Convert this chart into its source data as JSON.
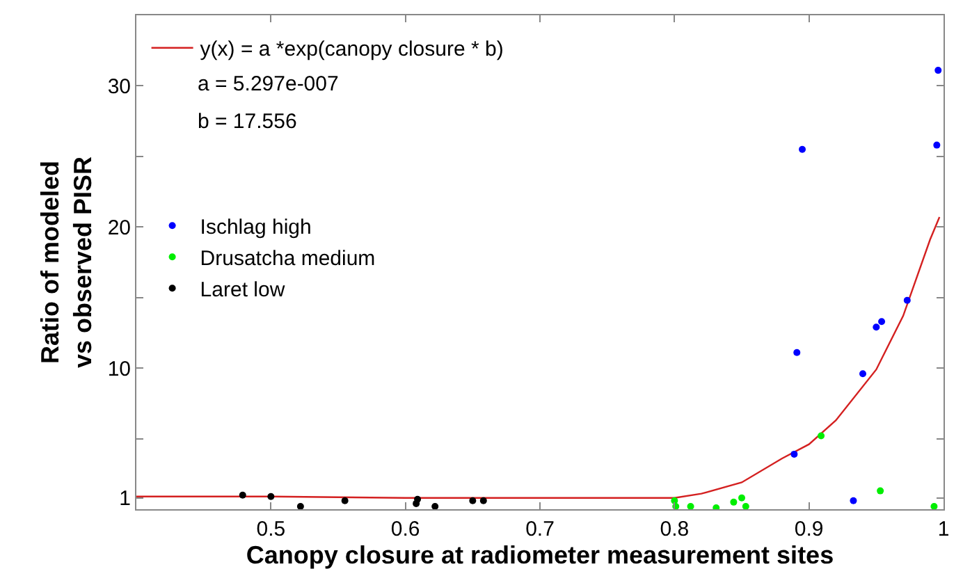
{
  "chart_data": {
    "type": "scatter",
    "xlabel": "Canopy closure at radiometer measurement sites",
    "ylabel": "Ratio of modeled\nvs observed PISR",
    "xlim": [
      0.4,
      1.0
    ],
    "ylim": [
      0,
      35
    ],
    "xticks": [
      0.5,
      0.6,
      0.7,
      0.8,
      0.9,
      1
    ],
    "yticks": [
      {
        "value": 0.8,
        "label": "1"
      },
      {
        "value": 5,
        "label": null
      },
      10,
      {
        "value": 15,
        "label": null
      },
      20,
      {
        "value": 25,
        "label": null
      },
      30
    ],
    "legend": "top left",
    "marker": "circle",
    "annotations": [
      "a = 5.297e-007",
      "b = 17.556"
    ],
    "series": [
      {
        "name": "y(x) = a *exp(canopy closure * b)",
        "type": "line",
        "marker": "none",
        "color": "#d42020",
        "line_style": "solid",
        "x": [
          0.4,
          0.5,
          0.6,
          0.7,
          0.8,
          0.82,
          0.85,
          0.88,
          0.9,
          0.92,
          0.95,
          0.97,
          0.99,
          0.997
        ],
        "values": [
          0.9,
          0.9,
          0.8,
          0.8,
          0.8,
          1.1,
          1.9,
          3.6,
          4.6,
          6.3,
          9.9,
          13.7,
          19.1,
          20.7
        ]
      },
      {
        "name": "Ischlag high",
        "color": "#0000ff",
        "x": [
          0.895,
          0.996,
          0.995,
          0.891,
          0.973,
          0.95,
          0.954,
          0.94,
          0.889,
          0.933
        ],
        "values": [
          25.5,
          31.1,
          25.8,
          11.1,
          14.8,
          12.9,
          13.3,
          9.6,
          3.9,
          0.6
        ]
      },
      {
        "name": "Drusatcha medium",
        "color": "#00ee00",
        "x": [
          0.8,
          0.801,
          0.812,
          0.831,
          0.844,
          0.85,
          0.853,
          0.909,
          0.953,
          0.993
        ],
        "values": [
          0.6,
          0.2,
          0.2,
          0.1,
          0.5,
          0.8,
          0.2,
          5.2,
          1.3,
          0.2
        ]
      },
      {
        "name": "Laret low",
        "color": "#000000",
        "x": [
          0.479,
          0.5,
          0.522,
          0.555,
          0.609,
          0.608,
          0.622,
          0.65,
          0.658
        ],
        "values": [
          1.0,
          0.9,
          0.2,
          0.6,
          0.7,
          0.4,
          0.2,
          0.6,
          0.6
        ]
      }
    ]
  }
}
